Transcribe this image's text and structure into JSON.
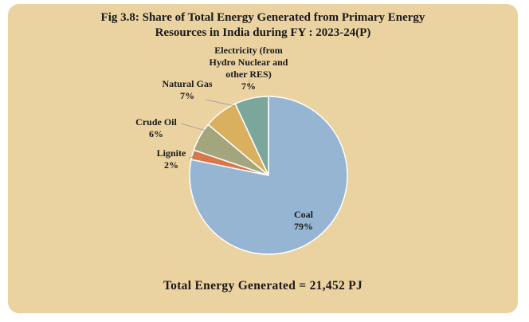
{
  "title_lines": [
    "Fig 3.8: Share of Total Energy Generated from Primary Energy",
    "Resources in India during  FY : 2023-24(P)"
  ],
  "footer": "Total Energy Generated = 21,452 PJ",
  "chart_data": {
    "type": "pie",
    "title": "Fig 3.8: Share of Total Energy Generated from Primary Energy Resources in India during  FY : 2023-24(P)",
    "slices": [
      {
        "label": "Coal",
        "value": 79,
        "value_label": "79%",
        "color": "#95b5d2"
      },
      {
        "label": "Lignite",
        "value": 2,
        "value_label": "2%",
        "color": "#d9764a"
      },
      {
        "label": "Crude Oil",
        "value": 6,
        "value_label": "6%",
        "color": "#a3a67d"
      },
      {
        "label": "Natural Gas",
        "value": 7,
        "value_label": "7%",
        "color": "#d8b05e"
      },
      {
        "label_lines": [
          "Electricity (from",
          "Hydro Nuclear and",
          "other RES)"
        ],
        "label": "Electricity (from Hydro Nuclear and other RES)",
        "value": 7,
        "value_label": "7%",
        "color": "#7ba69b"
      }
    ]
  }
}
